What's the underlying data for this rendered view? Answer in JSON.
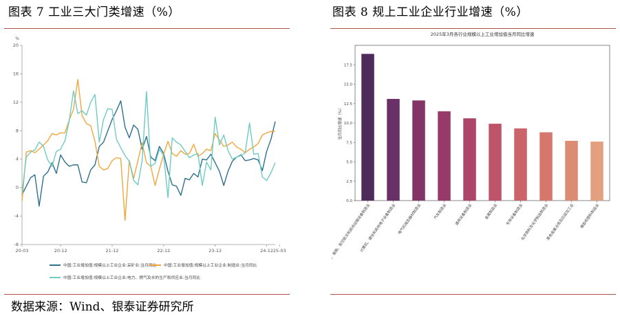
{
  "figure_left": {
    "title": "图表 7  工业三大门类增速（%）"
  },
  "figure_right": {
    "title": "图表 8  规上工业企业行业增速（%）"
  },
  "source": "数据来源：Wind、银泰证券研究所",
  "chart_data": [
    {
      "type": "line",
      "unit_label": "%",
      "ylim": [
        -8,
        20
      ],
      "yticks": [
        -8,
        -4,
        0,
        4,
        8,
        12,
        16,
        20
      ],
      "xticks": [
        "20-03",
        "20-12",
        "21-12",
        "22-12",
        "23-12",
        "24-12",
        "25-03"
      ],
      "xtick_index": [
        0,
        9,
        21,
        33,
        45,
        57,
        60
      ],
      "grid": false,
      "legend": "bottom",
      "series": [
        {
          "name": "中国:工业增加值:规模以上工业企业:采矿业:当月同比",
          "color": "#2e6f8e",
          "values": [
            -1.0,
            0.2,
            1.4,
            1.8,
            -2.6,
            1.6,
            2.2,
            3.5,
            2.0,
            4.6,
            3.6,
            3.0,
            3.2,
            3.2,
            0.8,
            0.7,
            2.5,
            3.2,
            5.8,
            6.4,
            8.0,
            9.6,
            10.8,
            12.2,
            8.5,
            7.0,
            8.8,
            8.2,
            5.4,
            7.2,
            4.3,
            3.8,
            5.8,
            4.8,
            2.3,
            0.4,
            0.2,
            -1.1,
            1.3,
            1.1,
            2.0,
            1.5,
            4.0,
            3.9,
            4.7,
            3.5,
            2.3,
            0.3,
            2.3,
            3.7,
            4.3,
            4.6,
            3.8,
            3.9,
            4.1,
            3.9,
            2.4,
            5.1,
            6.8,
            9.3
          ]
        },
        {
          "name": "中国:工业增加值:规模以上工业企业:制造业:当月同比",
          "color": "#f2a63a",
          "values": [
            -1.9,
            5.0,
            5.2,
            4.9,
            5.4,
            6.0,
            6.6,
            7.6,
            7.4,
            7.7,
            7.7,
            9.5,
            11.0,
            15.2,
            10.1,
            9.0,
            8.7,
            6.5,
            3.0,
            2.5,
            2.7,
            3.8,
            4.2,
            4.1,
            -4.6,
            3.8,
            1.3,
            3.8,
            6.3,
            3.5,
            3.0,
            0.3,
            2.6,
            4.7,
            6.5,
            4.8,
            4.4,
            5.2,
            4.7,
            4.8,
            6.1,
            4.4,
            4.8,
            5.4,
            5.2,
            7.6,
            6.7,
            5.8,
            6.0,
            6.4,
            5.7,
            5.4,
            4.9,
            5.4,
            5.7,
            6.2,
            7.4,
            7.7,
            7.9,
            7.9
          ]
        },
        {
          "name": "中国:工业增加值:规模以上工业企业:电力、燃气及水的生产和供应业:当月同比",
          "color": "#6ecbc2",
          "values": [
            -0.8,
            4.3,
            5.0,
            5.3,
            6.4,
            5.8,
            3.9,
            3.0,
            5.1,
            5.4,
            6.6,
            9.4,
            13.6,
            10.4,
            10.8,
            10.2,
            12.0,
            13.1,
            6.4,
            9.6,
            11.1,
            11.0,
            6.8,
            5.6,
            4.5,
            3.7,
            1.0,
            0.4,
            3.8,
            13.5,
            3.0,
            3.4,
            5.4,
            4.5,
            -1.4,
            7.0,
            6.4,
            6.0,
            5.1,
            4.2,
            4.6,
            4.8,
            0.3,
            3.6,
            2.5,
            9.9,
            6.0,
            7.4,
            5.2,
            4.0,
            4.3,
            4.5,
            4.9,
            9.1,
            4.7,
            4.8,
            1.5,
            1.0,
            2.1,
            3.5
          ]
        }
      ]
    },
    {
      "type": "bar",
      "title": "2025年3月各行业规模以上工业增加值当月同比增速",
      "ylabel": "当月同比增速（%）",
      "ylim": [
        0,
        20
      ],
      "yticks": [
        0,
        2.5,
        5.0,
        7.5,
        10.0,
        12.5,
        15.0,
        17.5
      ],
      "grid": false,
      "categories": [
        "铁路、船舶、航空航天和其他运输设备制造业",
        "计算机、通信和其他电子设备制造业",
        "电气机械及器材制造业",
        "汽车制造业",
        "通用设备制造业",
        "金属制品业",
        "专用设备制造业",
        "化学原料及化学制品制造业",
        "黑色金属冶炼及压延加工业",
        "橡胶和塑料制品业"
      ],
      "values": [
        18.9,
        13.1,
        12.9,
        11.5,
        10.6,
        9.9,
        9.3,
        8.8,
        7.7,
        7.6
      ],
      "colors": [
        "#4e2a5a",
        "#6a3068",
        "#823467",
        "#973a69",
        "#ac4569",
        "#bd5469",
        "#cb6369",
        "#d5776c",
        "#dd8c74",
        "#e3a07e"
      ]
    }
  ]
}
